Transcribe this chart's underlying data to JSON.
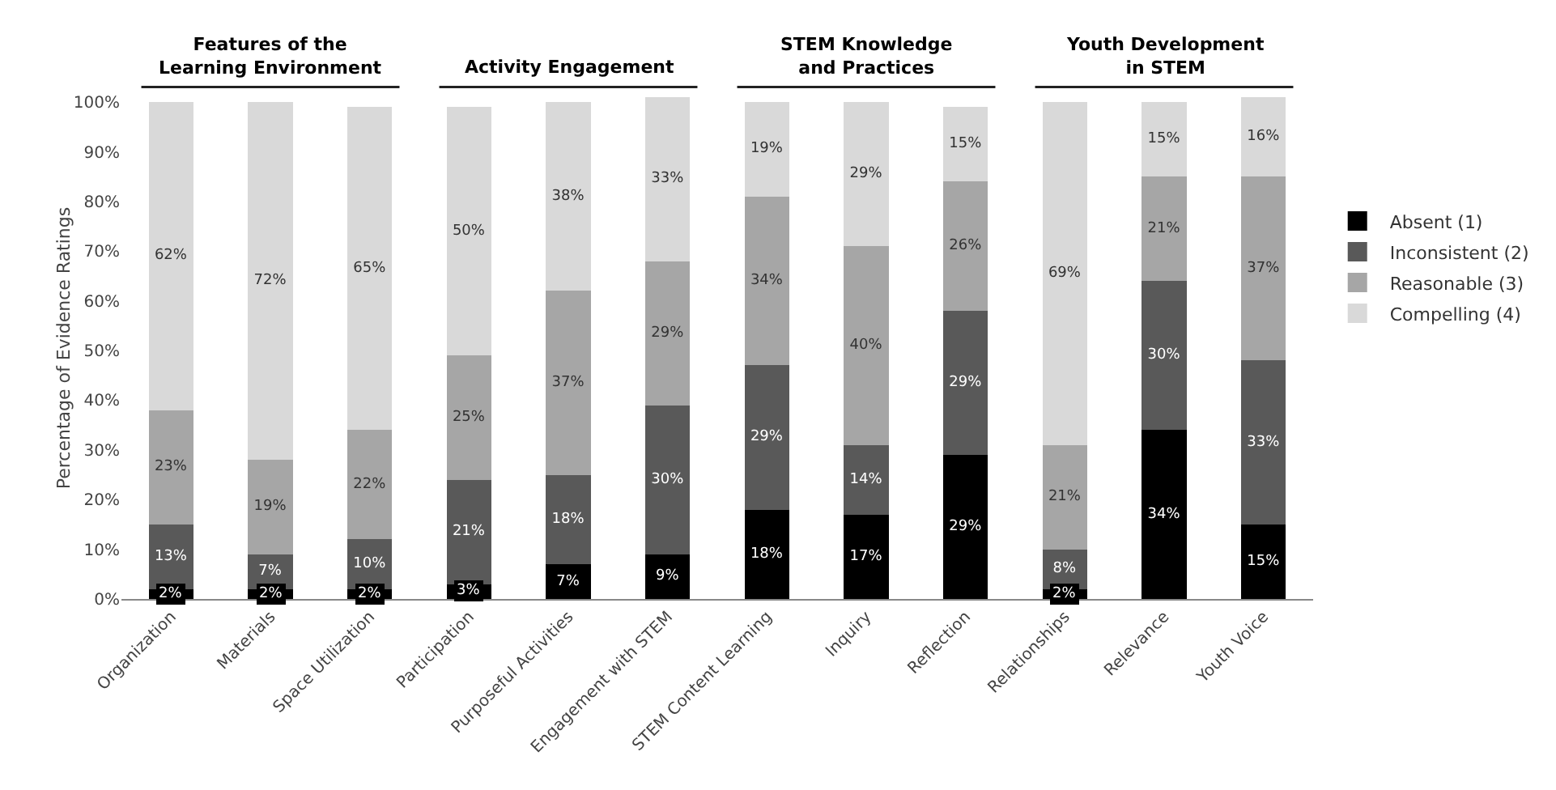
{
  "chart_data": {
    "type": "bar",
    "stacked": true,
    "ylabel": "Percentage of Evidence Ratings",
    "categories": [
      "Organization",
      "Materials",
      "Space Utilization",
      "Participation",
      "Purposeful Activities",
      "Engagement with STEM",
      "STEM Content Learning",
      "Inquiry",
      "Reflection",
      "Relationships",
      "Relevance",
      "Youth Voice"
    ],
    "series": [
      {
        "name": "Absent (1)",
        "color": "#000000",
        "values": [
          2,
          2,
          2,
          3,
          7,
          9,
          18,
          17,
          29,
          2,
          34,
          15
        ],
        "value_labels": [
          "2%",
          "2%",
          "2%",
          "3%",
          "7%",
          "9%",
          "18%",
          "17%",
          "29%",
          "2%",
          "34%",
          "15%"
        ]
      },
      {
        "name": "Inconsistent (2)",
        "color": "#595959",
        "values": [
          13,
          7,
          10,
          21,
          18,
          30,
          29,
          14,
          29,
          8,
          30,
          33
        ],
        "value_labels": [
          "13%",
          "7%",
          "10%",
          "21%",
          "18%",
          "30%",
          "29%",
          "14%",
          "29%",
          "8%",
          "30%",
          "33%"
        ]
      },
      {
        "name": "Reasonable (3)",
        "color": "#a6a6a6",
        "values": [
          23,
          19,
          22,
          25,
          37,
          29,
          34,
          40,
          26,
          21,
          21,
          37
        ],
        "value_labels": [
          "23%",
          "19%",
          "22%",
          "25%",
          "37%",
          "29%",
          "34%",
          "40%",
          "26%",
          "21%",
          "21%",
          "37%"
        ]
      },
      {
        "name": "Compelling (4)",
        "color": "#d9d9d9",
        "values": [
          62,
          72,
          65,
          50,
          38,
          33,
          19,
          29,
          15,
          69,
          15,
          16
        ],
        "value_labels": [
          "62%",
          "72%",
          "65%",
          "50%",
          "38%",
          "33%",
          "19%",
          "29%",
          "15%",
          "69%",
          "15%",
          "16%"
        ]
      }
    ],
    "annotations": [
      "Features of the\nLearning Environment",
      "Activity Engagement",
      "STEM Knowledge\nand Practices",
      "Youth Development\nin STEM"
    ],
    "ylim": [
      0,
      101
    ],
    "yticks": [
      {
        "value": 0,
        "label": "0%"
      },
      {
        "value": 10,
        "label": "10%"
      },
      {
        "value": 20,
        "label": "20%"
      },
      {
        "value": 30,
        "label": "30%"
      },
      {
        "value": 40,
        "label": "40%"
      },
      {
        "value": 50,
        "label": "50%"
      },
      {
        "value": 60,
        "label": "60%"
      },
      {
        "value": 70,
        "label": "70%"
      },
      {
        "value": 80,
        "label": "80%"
      },
      {
        "value": 90,
        "label": "90%"
      },
      {
        "value": 100,
        "label": "100%"
      }
    ],
    "grid": false,
    "legend": "right"
  }
}
